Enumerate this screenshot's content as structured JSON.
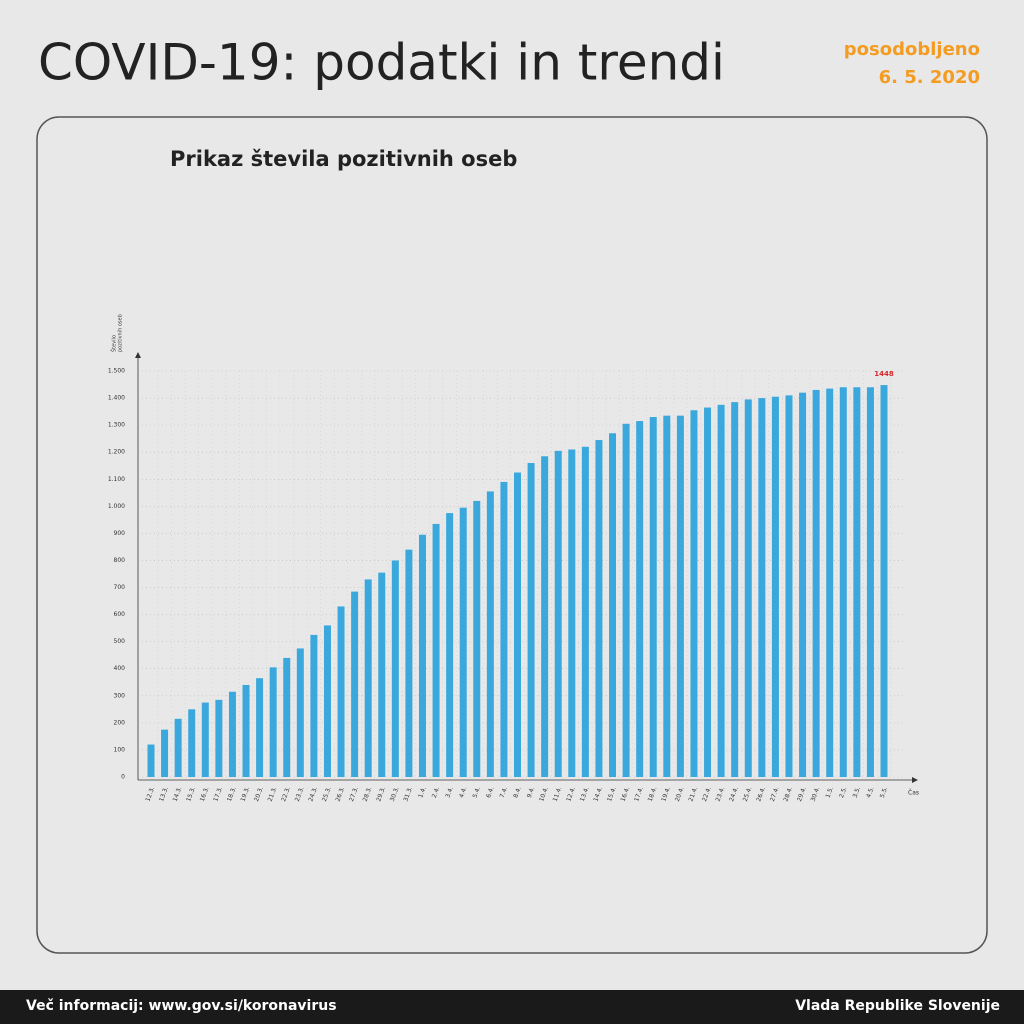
{
  "header": {
    "title": "COVID-19: podatki in trendi",
    "updated_label": "posodobljeno",
    "updated_date": "6. 5. 2020"
  },
  "footer": {
    "left": "Več informacij: www.gov.si/koronavirus",
    "right": "Vlada Republike Slovenije"
  },
  "chart_data": {
    "type": "bar",
    "title": "Prikaz števila pozitivnih oseb",
    "y_label": [
      "Število",
      "pozitivnih oseb"
    ],
    "x_label": "Čas",
    "categories": [
      "12.3.",
      "13.3.",
      "14.3.",
      "15.3.",
      "16.3.",
      "17.3.",
      "18.3.",
      "19.3.",
      "20.3.",
      "21.3.",
      "22.3.",
      "23.3.",
      "24.3.",
      "25.3.",
      "26.3.",
      "27.3.",
      "28.3.",
      "29.3.",
      "30.3.",
      "31.3.",
      "1.4.",
      "2.4.",
      "3.4.",
      "4.4.",
      "5.4.",
      "6.4.",
      "7.4.",
      "8.4.",
      "9.4.",
      "10.4.",
      "11.4.",
      "12.4.",
      "13.4.",
      "14.4.",
      "15.4.",
      "16.4.",
      "17.4.",
      "18.4.",
      "19.4.",
      "20.4.",
      "21.4.",
      "22.4.",
      "23.4.",
      "24.4.",
      "25.4.",
      "26.4.",
      "27.4.",
      "28.4.",
      "29.4.",
      "30.4.",
      "1.5.",
      "2.5.",
      "3.5.",
      "4.5.",
      "5.5."
    ],
    "values": [
      120,
      175,
      215,
      250,
      275,
      285,
      315,
      340,
      365,
      405,
      440,
      475,
      525,
      560,
      630,
      685,
      730,
      755,
      800,
      840,
      895,
      935,
      975,
      995,
      1020,
      1055,
      1090,
      1125,
      1160,
      1185,
      1205,
      1210,
      1220,
      1245,
      1270,
      1305,
      1315,
      1330,
      1335,
      1335,
      1355,
      1365,
      1375,
      1385,
      1395,
      1400,
      1405,
      1410,
      1420,
      1430,
      1435,
      1440,
      1440,
      1440,
      1448
    ],
    "labeled_index": 54,
    "color": "#3aa8dc",
    "label_color": "#d7262d",
    "ylim": [
      0,
      1500
    ],
    "yticks": [
      0,
      100,
      200,
      300,
      400,
      500,
      600,
      700,
      800,
      900,
      {
        "value": 1000,
        "label": "1.000"
      },
      {
        "value": 1100,
        "label": "1.100"
      },
      {
        "value": 1200,
        "label": "1.200"
      },
      {
        "value": 1300,
        "label": "1.300"
      },
      {
        "value": 1400,
        "label": "1.400"
      },
      {
        "value": 1500,
        "label": "1.500"
      }
    ],
    "grid": true
  }
}
